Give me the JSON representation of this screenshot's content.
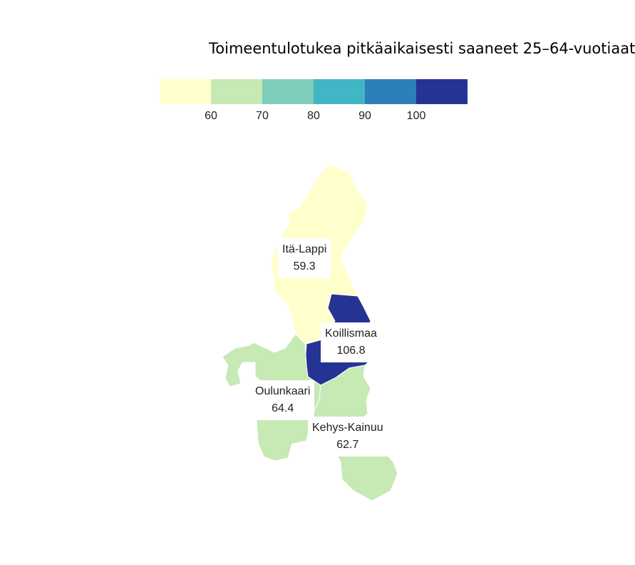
{
  "title": "Toimeentulotukea pitkäaikaisesti saaneet 25–64-vuotiaat",
  "legend": {
    "colors": [
      "#ffffcc",
      "#c7e9b4",
      "#7fcdbb",
      "#41b6c4",
      "#2c7fb8",
      "#253494"
    ],
    "ticks": [
      "60",
      "70",
      "80",
      "90",
      "100"
    ]
  },
  "regions": [
    {
      "name": "Itä-Lappi",
      "value": "59.3",
      "color": "#ffffcc"
    },
    {
      "name": "Koillismaa",
      "value": "106.8",
      "color": "#253494"
    },
    {
      "name": "Oulunkaari",
      "value": "64.4",
      "color": "#c7e9b4"
    },
    {
      "name": "Kehys-Kainuu",
      "value": "62.7",
      "color": "#c7e9b4"
    }
  ]
}
